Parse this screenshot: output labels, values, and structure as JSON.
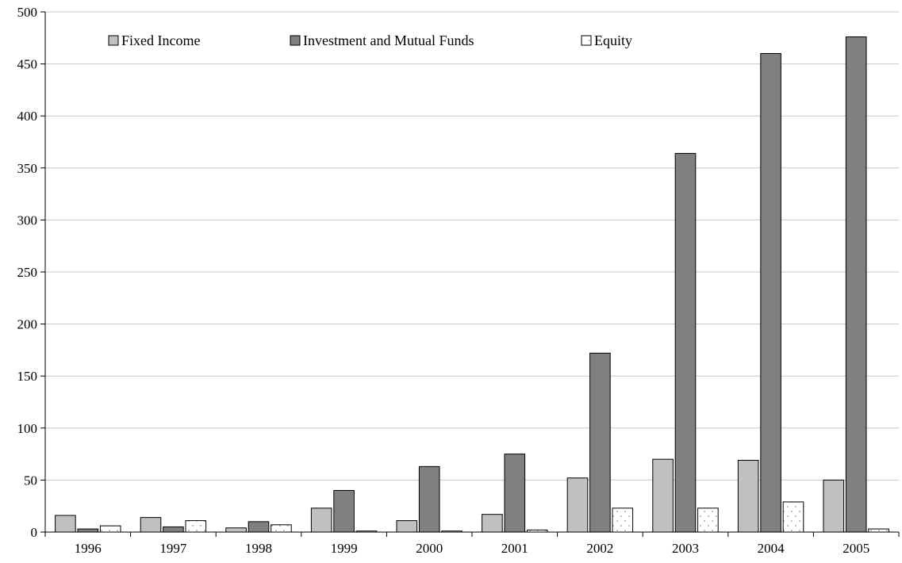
{
  "chart_data": {
    "type": "bar",
    "title": "",
    "xlabel": "",
    "ylabel": "",
    "categories": [
      "1996",
      "1997",
      "1998",
      "1999",
      "2000",
      "2001",
      "2002",
      "2003",
      "2004",
      "2005"
    ],
    "series": [
      {
        "name": "Fixed Income",
        "color": "#c0c0c0",
        "values": [
          16,
          14,
          4,
          23,
          11,
          17,
          52,
          70,
          69,
          50
        ]
      },
      {
        "name": "Investment and Mutual Funds",
        "color": "#808080",
        "values": [
          3,
          5,
          10,
          40,
          63,
          75,
          172,
          364,
          460,
          476
        ]
      },
      {
        "name": "Equity",
        "color": "#ffffff",
        "pattern": "dots",
        "values": [
          6,
          11,
          7,
          1,
          1,
          2,
          23,
          23,
          29,
          3
        ]
      }
    ],
    "ylim": [
      0,
      500
    ],
    "yticks": [
      0,
      50,
      100,
      150,
      200,
      250,
      300,
      350,
      400,
      450,
      500
    ],
    "grid": true,
    "legend_position": "top"
  }
}
